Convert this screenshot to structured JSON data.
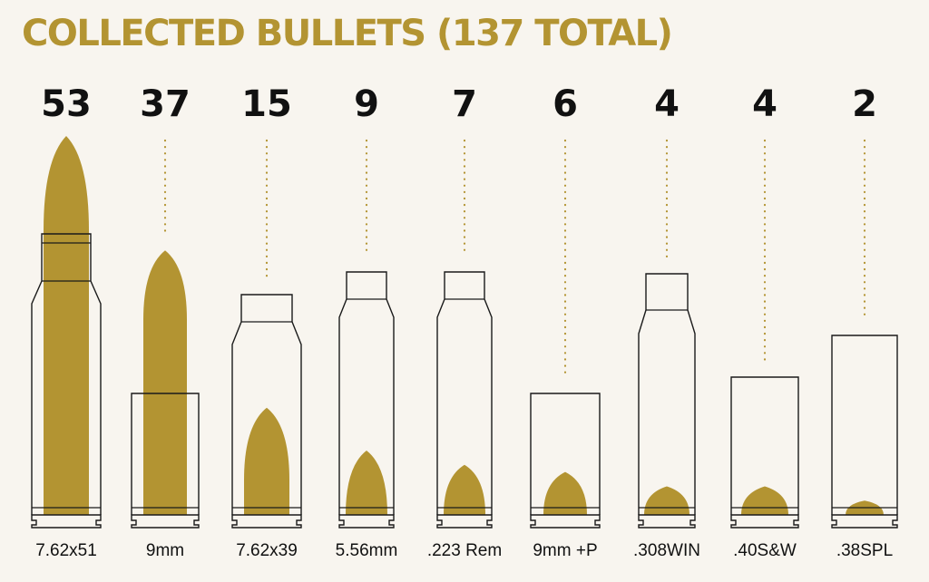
{
  "title": "COLLECTED BULLETS (137 TOTAL)",
  "colors": {
    "accent": "#b39432",
    "outline": "#1a1a1a",
    "background": "#f8f5ef",
    "text": "#111111"
  },
  "chart_data": {
    "type": "bar",
    "title": "COLLECTED BULLETS (137 TOTAL)",
    "categories": [
      "7.62x51",
      "9mm",
      "7.62x39",
      "5.56mm",
      ".223 Rem",
      "9mm +P",
      ".308WIN",
      ".40S&W",
      ".38SPL"
    ],
    "values": [
      53,
      37,
      15,
      9,
      7,
      6,
      4,
      4,
      2
    ],
    "value_labels": [
      "53",
      "37",
      "15",
      "9",
      "7",
      "6",
      "4",
      "4",
      "2"
    ],
    "ylim": [
      0,
      53
    ],
    "grid": false,
    "legend": "none"
  }
}
